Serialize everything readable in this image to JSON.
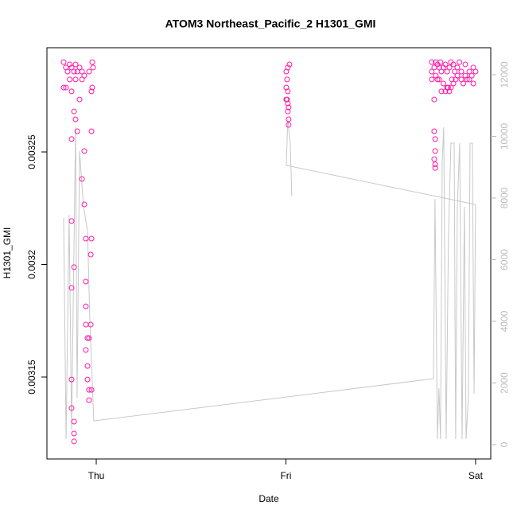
{
  "chart_data": {
    "type": "scatter",
    "title": "ATOM3 Northeast_Pacific_2 H1301_GMI",
    "x_label": "Date",
    "y_label": "H1301_GMI",
    "xlim": [
      -0.26,
      2.08
    ],
    "xticks": [
      {
        "value": 0,
        "label": "Thu"
      },
      {
        "value": 1,
        "label": "Fri"
      },
      {
        "value": 2,
        "label": "Sat"
      }
    ],
    "ylim": [
      0.0031136,
      0.0032963
    ],
    "yticks": [
      0.00315,
      0.0032,
      0.00325
    ],
    "y2lim": [
      -464,
      12877
    ],
    "y2ticks": [
      0,
      2000,
      4000,
      6000,
      8000,
      10000,
      12000
    ],
    "series": [
      {
        "color": "#ff1aa8",
        "x": [
          -0.172,
          -0.16,
          -0.151,
          -0.14,
          -0.13,
          -0.117,
          -0.109,
          -0.1,
          -0.088,
          -0.075,
          -0.063,
          -0.038,
          -0.021,
          -0.017,
          -0.172,
          -0.16,
          -0.14,
          -0.13,
          -0.109,
          -0.088,
          -0.075,
          -0.021,
          -0.025,
          -0.13,
          -0.117,
          -0.109,
          -0.1,
          -0.075,
          -0.063,
          -0.055,
          -0.029,
          -0.13,
          -0.117,
          -0.13,
          -0.055,
          -0.055,
          -0.055,
          -0.046,
          -0.038,
          -0.055,
          -0.046,
          -0.046,
          -0.038,
          -0.038,
          -0.13,
          -0.13,
          -0.117,
          -0.117,
          -0.117,
          -0.025,
          -0.029,
          -0.025,
          -0.025,
          -0.063,
          1.002,
          1.01,
          1.019,
          1.006,
          1.002,
          1.01,
          1.002,
          1.006,
          1.01,
          1.014,
          1.014,
          1.01,
          1.014,
          1.782,
          1.782,
          1.787,
          1.782,
          1.787,
          1.787,
          1.787,
          1.799,
          1.82,
          1.769,
          1.782,
          1.79,
          1.799,
          1.808,
          1.815,
          1.82,
          1.83,
          1.841,
          1.85,
          1.862,
          1.87,
          1.883,
          1.89,
          1.904,
          1.915,
          1.925,
          1.946,
          1.967,
          1.988,
          2.0,
          1.79,
          1.808,
          1.83,
          1.85,
          1.862,
          1.87,
          1.883,
          1.895,
          1.904,
          1.925,
          1.946,
          1.967,
          1.988,
          1.841,
          1.855,
          1.875,
          1.935,
          1.955,
          1.98,
          1.769,
          1.769
        ],
        "values": [
          0.0032899,
          0.0032875,
          0.0032857,
          0.0032889,
          0.0032875,
          0.0032857,
          0.0032889,
          0.0032857,
          0.0032875,
          0.0032857,
          0.0032839,
          0.0032857,
          0.0032899,
          0.0032875,
          0.0032786,
          0.0032786,
          0.0032822,
          0.0032769,
          0.0032822,
          0.0032733,
          0.0032822,
          0.0032786,
          0.0032769,
          0.0032557,
          0.003268,
          0.0032645,
          0.0032592,
          0.003238,
          0.0032267,
          0.0032115,
          0.0032044,
          0.0032193,
          0.0031988,
          0.0031896,
          0.0031924,
          0.0031814,
          0.0031733,
          0.0031673,
          0.0031673,
          0.003162,
          0.0031549,
          0.0031489,
          0.0031443,
          0.0031397,
          0.0031489,
          0.0031362,
          0.0031302,
          0.0031249,
          0.0031214,
          0.0032592,
          0.0031733,
          0.0031443,
          0.0032115,
          0.0032504,
          0.0032857,
          0.0032875,
          0.0032889,
          0.0032822,
          0.0032786,
          0.0032769,
          0.0032733,
          0.0032733,
          0.003268,
          0.0032645,
          0.003262,
          0.0032715,
          0.0032698,
          0.0032733,
          0.0032592,
          0.0032557,
          0.0032468,
          0.0032504,
          0.0032429,
          0.0032445,
          0.0032822,
          0.0032769,
          0.0032899,
          0.0032875,
          0.0032899,
          0.0032889,
          0.0032875,
          0.0032899,
          0.0032857,
          0.0032875,
          0.0032889,
          0.0032857,
          0.0032875,
          0.0032899,
          0.0032889,
          0.0032857,
          0.0032875,
          0.0032899,
          0.0032857,
          0.0032889,
          0.0032857,
          0.0032875,
          0.0032857,
          0.0032839,
          0.0032822,
          0.0032804,
          0.0032786,
          0.0032769,
          0.0032786,
          0.0032804,
          0.0032822,
          0.0032839,
          0.0032822,
          0.0032839,
          0.0032822,
          0.0032804,
          0.0032769,
          0.0032786,
          0.0032822,
          0.0032804,
          0.0032822,
          0.0032839,
          0.0032822,
          0.0032857
        ]
      },
      {
        "type": "line",
        "axis": "y2",
        "color": "#c8c8c8",
        "x": [
          -0.172,
          -0.159,
          -0.143,
          -0.13,
          -0.109,
          -0.101,
          -0.088,
          -0.067,
          -0.046,
          -0.034,
          -0.021,
          -0.013,
          1.778,
          1.786,
          1.799,
          1.807,
          1.815,
          1.824,
          1.832,
          1.845,
          1.857,
          1.87,
          1.887,
          1.895,
          1.904,
          1.916,
          1.929,
          1.941,
          1.95,
          1.962,
          1.971,
          1.983,
          1.992,
          2.0,
          1.002,
          1.01,
          1.023,
          1.031
        ],
        "values": [
          7350,
          180,
          7460,
          490,
          10300,
          1520,
          9520,
          7720,
          6940,
          4100,
          2040,
          770,
          2140,
          7970,
          180,
          1830,
          180,
          9130,
          10300,
          180,
          6710,
          9780,
          9780,
          180,
          7720,
          9780,
          180,
          7720,
          180,
          1520,
          9780,
          9780,
          1650,
          7790,
          9060,
          10550,
          9780,
          8050
        ]
      }
    ]
  }
}
